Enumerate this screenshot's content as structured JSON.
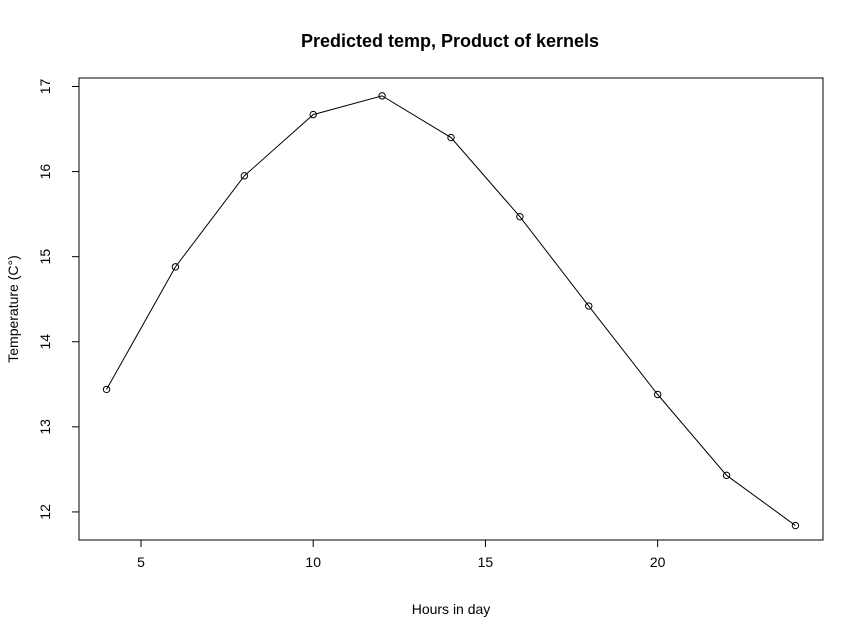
{
  "chart_data": {
    "type": "line",
    "title": "Predicted temp, Product of kernels",
    "xlabel": "Hours in day",
    "ylabel": "Temperature (C°)",
    "xlim": [
      3.2,
      24.8
    ],
    "ylim": [
      11.67,
      17.1
    ],
    "xticks": [
      5,
      10,
      15,
      20
    ],
    "yticks": [
      12,
      13,
      14,
      15,
      16,
      17
    ],
    "grid": false,
    "legend": "none",
    "series": [
      {
        "x": [
          4,
          6,
          8,
          10,
          12,
          14,
          16,
          18,
          20,
          22,
          24
        ],
        "y": [
          13.44,
          14.88,
          15.95,
          16.67,
          16.89,
          16.4,
          15.47,
          14.42,
          13.38,
          12.43,
          11.84
        ]
      }
    ]
  }
}
